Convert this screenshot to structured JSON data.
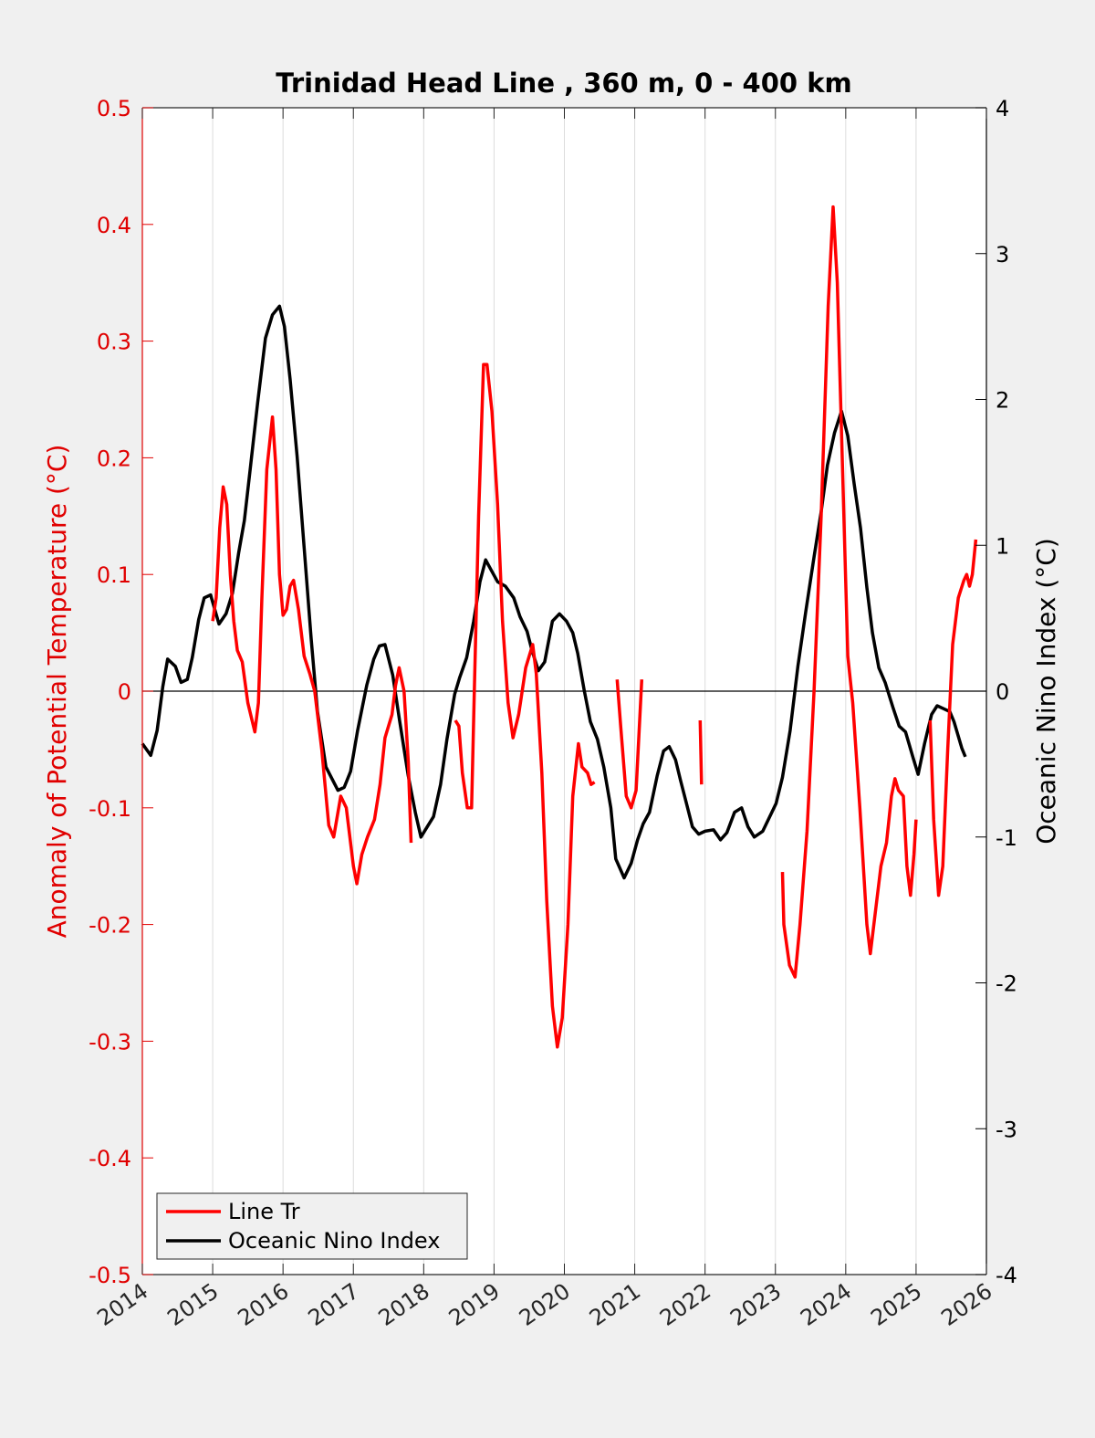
{
  "chart_data": {
    "type": "line",
    "title": "Trinidad Head Line , 360 m, 0 - 400 km",
    "xlabel": "",
    "ylabel": "Anomaly of Potential Temperature (°C)",
    "ylabel_right": "Oceanic Nino Index (°C)",
    "xlim": [
      2014,
      2026
    ],
    "ylim": [
      -0.5,
      0.5
    ],
    "ylim_right": [
      -4,
      4
    ],
    "grid": "x",
    "legend_position": "bottom-left",
    "colors": {
      "line_tr": "#ff0000",
      "oni": "#000000",
      "left_axis": "#e00000"
    },
    "x_ticks": [
      "2014",
      "2015",
      "2016",
      "2017",
      "2018",
      "2019",
      "2020",
      "2021",
      "2022",
      "2023",
      "2024",
      "2025",
      "2026"
    ],
    "y_ticks_left": [
      "0.5",
      "0.4",
      "0.3",
      "0.2",
      "0.1",
      "0",
      "-0.1",
      "-0.2",
      "-0.3",
      "-0.4",
      "-0.5"
    ],
    "y_ticks_right": [
      "4",
      "3",
      "2",
      "1",
      "0",
      "-1",
      "-2",
      "-3",
      "-4"
    ],
    "series": [
      {
        "name": "Line Tr",
        "axis": "left",
        "segments": [
          [
            [
              2015.0,
              0.06
            ],
            [
              2015.05,
              0.08
            ],
            [
              2015.1,
              0.14
            ],
            [
              2015.15,
              0.175
            ],
            [
              2015.2,
              0.16
            ],
            [
              2015.25,
              0.1
            ],
            [
              2015.3,
              0.06
            ],
            [
              2015.35,
              0.035
            ],
            [
              2015.42,
              0.025
            ],
            [
              2015.5,
              -0.01
            ],
            [
              2015.6,
              -0.035
            ],
            [
              2015.65,
              -0.01
            ],
            [
              2015.7,
              0.08
            ],
            [
              2015.77,
              0.19
            ],
            [
              2015.85,
              0.235
            ],
            [
              2015.9,
              0.19
            ],
            [
              2015.95,
              0.1
            ],
            [
              2016.0,
              0.065
            ],
            [
              2016.05,
              0.07
            ],
            [
              2016.1,
              0.09
            ],
            [
              2016.15,
              0.095
            ],
            [
              2016.22,
              0.07
            ],
            [
              2016.3,
              0.03
            ],
            [
              2016.38,
              0.015
            ],
            [
              2016.45,
              0.0
            ],
            [
              2016.55,
              -0.05
            ],
            [
              2016.65,
              -0.115
            ],
            [
              2016.72,
              -0.125
            ],
            [
              2016.82,
              -0.09
            ],
            [
              2016.9,
              -0.1
            ],
            [
              2017.0,
              -0.15
            ],
            [
              2017.05,
              -0.165
            ],
            [
              2017.12,
              -0.14
            ],
            [
              2017.2,
              -0.125
            ],
            [
              2017.3,
              -0.11
            ],
            [
              2017.38,
              -0.08
            ],
            [
              2017.45,
              -0.04
            ],
            [
              2017.55,
              -0.02
            ],
            [
              2017.6,
              0.005
            ],
            [
              2017.65,
              0.02
            ],
            [
              2017.72,
              0.0
            ],
            [
              2017.78,
              -0.06
            ],
            [
              2017.82,
              -0.13
            ]
          ],
          [
            [
              2018.45,
              -0.025
            ],
            [
              2018.5,
              -0.03
            ],
            [
              2018.55,
              -0.07
            ],
            [
              2018.62,
              -0.1
            ],
            [
              2018.68,
              -0.1
            ],
            [
              2018.72,
              0.0
            ],
            [
              2018.78,
              0.15
            ],
            [
              2018.85,
              0.28
            ],
            [
              2018.9,
              0.28
            ],
            [
              2018.97,
              0.24
            ],
            [
              2019.05,
              0.16
            ],
            [
              2019.12,
              0.06
            ],
            [
              2019.2,
              -0.01
            ],
            [
              2019.27,
              -0.04
            ],
            [
              2019.35,
              -0.02
            ],
            [
              2019.45,
              0.02
            ],
            [
              2019.55,
              0.04
            ],
            [
              2019.6,
              0.015
            ],
            [
              2019.68,
              -0.07
            ],
            [
              2019.75,
              -0.18
            ],
            [
              2019.83,
              -0.27
            ],
            [
              2019.9,
              -0.305
            ],
            [
              2019.97,
              -0.28
            ],
            [
              2020.05,
              -0.2
            ],
            [
              2020.12,
              -0.09
            ],
            [
              2020.2,
              -0.045
            ],
            [
              2020.25,
              -0.065
            ],
            [
              2020.33,
              -0.07
            ],
            [
              2020.38,
              -0.08
            ],
            [
              2020.43,
              -0.078
            ]
          ],
          [
            [
              2020.75,
              0.01
            ],
            [
              2020.8,
              -0.03
            ],
            [
              2020.88,
              -0.09
            ],
            [
              2020.95,
              -0.1
            ],
            [
              2021.02,
              -0.085
            ],
            [
              2021.1,
              0.01
            ]
          ],
          [
            [
              2021.93,
              -0.025
            ],
            [
              2021.95,
              -0.08
            ]
          ],
          [
            [
              2023.1,
              -0.155
            ],
            [
              2023.12,
              -0.2
            ],
            [
              2023.2,
              -0.235
            ],
            [
              2023.28,
              -0.245
            ],
            [
              2023.35,
              -0.2
            ],
            [
              2023.45,
              -0.12
            ],
            [
              2023.55,
              0.0
            ],
            [
              2023.65,
              0.15
            ],
            [
              2023.75,
              0.33
            ],
            [
              2023.82,
              0.415
            ],
            [
              2023.88,
              0.35
            ],
            [
              2023.95,
              0.2
            ],
            [
              2024.03,
              0.03
            ],
            [
              2024.1,
              -0.01
            ],
            [
              2024.2,
              -0.1
            ],
            [
              2024.3,
              -0.2
            ],
            [
              2024.35,
              -0.225
            ],
            [
              2024.42,
              -0.19
            ],
            [
              2024.5,
              -0.15
            ],
            [
              2024.58,
              -0.13
            ],
            [
              2024.65,
              -0.09
            ],
            [
              2024.7,
              -0.075
            ],
            [
              2024.75,
              -0.085
            ],
            [
              2024.82,
              -0.09
            ],
            [
              2024.87,
              -0.15
            ],
            [
              2024.92,
              -0.175
            ],
            [
              2024.97,
              -0.14
            ],
            [
              2025.0,
              -0.11
            ]
          ],
          [
            [
              2025.2,
              -0.025
            ],
            [
              2025.25,
              -0.11
            ],
            [
              2025.32,
              -0.175
            ],
            [
              2025.38,
              -0.15
            ],
            [
              2025.45,
              -0.05
            ],
            [
              2025.52,
              0.04
            ],
            [
              2025.6,
              0.08
            ],
            [
              2025.68,
              0.095
            ],
            [
              2025.72,
              0.1
            ],
            [
              2025.76,
              0.09
            ],
            [
              2025.8,
              0.1
            ],
            [
              2025.85,
              0.13
            ]
          ]
        ]
      },
      {
        "name": "Oceanic Nino Index",
        "axis": "right",
        "points": [
          [
            2014.0,
            -0.36
          ],
          [
            2014.12,
            -0.44
          ],
          [
            2014.21,
            -0.27
          ],
          [
            2014.29,
            0.03
          ],
          [
            2014.36,
            0.22
          ],
          [
            2014.47,
            0.17
          ],
          [
            2014.55,
            0.06
          ],
          [
            2014.64,
            0.08
          ],
          [
            2014.71,
            0.23
          ],
          [
            2014.8,
            0.49
          ],
          [
            2014.88,
            0.64
          ],
          [
            2014.97,
            0.66
          ],
          [
            2015.09,
            0.46
          ],
          [
            2015.19,
            0.53
          ],
          [
            2015.28,
            0.67
          ],
          [
            2015.37,
            0.95
          ],
          [
            2015.45,
            1.17
          ],
          [
            2015.54,
            1.55
          ],
          [
            2015.64,
            1.98
          ],
          [
            2015.75,
            2.42
          ],
          [
            2015.85,
            2.58
          ],
          [
            2015.95,
            2.64
          ],
          [
            2016.02,
            2.5
          ],
          [
            2016.1,
            2.14
          ],
          [
            2016.2,
            1.61
          ],
          [
            2016.31,
            0.92
          ],
          [
            2016.4,
            0.36
          ],
          [
            2016.49,
            -0.14
          ],
          [
            2016.61,
            -0.52
          ],
          [
            2016.78,
            -0.68
          ],
          [
            2016.87,
            -0.66
          ],
          [
            2016.96,
            -0.55
          ],
          [
            2017.06,
            -0.27
          ],
          [
            2017.19,
            0.04
          ],
          [
            2017.29,
            0.22
          ],
          [
            2017.37,
            0.31
          ],
          [
            2017.45,
            0.32
          ],
          [
            2017.56,
            0.11
          ],
          [
            2017.66,
            -0.21
          ],
          [
            2017.78,
            -0.58
          ],
          [
            2017.88,
            -0.83
          ],
          [
            2017.96,
            -1.0
          ],
          [
            2018.05,
            -0.93
          ],
          [
            2018.14,
            -0.86
          ],
          [
            2018.24,
            -0.64
          ],
          [
            2018.33,
            -0.33
          ],
          [
            2018.44,
            -0.02
          ],
          [
            2018.51,
            0.09
          ],
          [
            2018.61,
            0.23
          ],
          [
            2018.71,
            0.48
          ],
          [
            2018.8,
            0.75
          ],
          [
            2018.88,
            0.9
          ],
          [
            2018.96,
            0.83
          ],
          [
            2019.05,
            0.75
          ],
          [
            2019.16,
            0.72
          ],
          [
            2019.28,
            0.64
          ],
          [
            2019.37,
            0.51
          ],
          [
            2019.47,
            0.41
          ],
          [
            2019.54,
            0.28
          ],
          [
            2019.63,
            0.14
          ],
          [
            2019.72,
            0.2
          ],
          [
            2019.83,
            0.48
          ],
          [
            2019.93,
            0.53
          ],
          [
            2020.03,
            0.48
          ],
          [
            2020.12,
            0.4
          ],
          [
            2020.19,
            0.26
          ],
          [
            2020.28,
            0.01
          ],
          [
            2020.37,
            -0.21
          ],
          [
            2020.47,
            -0.33
          ],
          [
            2020.56,
            -0.52
          ],
          [
            2020.66,
            -0.8
          ],
          [
            2020.73,
            -1.15
          ],
          [
            2020.85,
            -1.28
          ],
          [
            2020.95,
            -1.18
          ],
          [
            2021.04,
            -1.02
          ],
          [
            2021.12,
            -0.91
          ],
          [
            2021.21,
            -0.83
          ],
          [
            2021.32,
            -0.58
          ],
          [
            2021.41,
            -0.41
          ],
          [
            2021.49,
            -0.38
          ],
          [
            2021.58,
            -0.47
          ],
          [
            2021.65,
            -0.61
          ],
          [
            2021.73,
            -0.76
          ],
          [
            2021.82,
            -0.93
          ],
          [
            2021.91,
            -0.98
          ],
          [
            2022.0,
            -0.96
          ],
          [
            2022.12,
            -0.95
          ],
          [
            2022.22,
            -1.02
          ],
          [
            2022.31,
            -0.97
          ],
          [
            2022.42,
            -0.83
          ],
          [
            2022.52,
            -0.8
          ],
          [
            2022.61,
            -0.93
          ],
          [
            2022.7,
            -1.0
          ],
          [
            2022.82,
            -0.96
          ],
          [
            2022.92,
            -0.86
          ],
          [
            2023.01,
            -0.77
          ],
          [
            2023.1,
            -0.59
          ],
          [
            2023.21,
            -0.27
          ],
          [
            2023.32,
            0.17
          ],
          [
            2023.43,
            0.54
          ],
          [
            2023.55,
            0.92
          ],
          [
            2023.65,
            1.23
          ],
          [
            2023.74,
            1.55
          ],
          [
            2023.84,
            1.77
          ],
          [
            2023.94,
            1.92
          ],
          [
            2024.03,
            1.75
          ],
          [
            2024.12,
            1.42
          ],
          [
            2024.21,
            1.12
          ],
          [
            2024.3,
            0.71
          ],
          [
            2024.38,
            0.4
          ],
          [
            2024.47,
            0.16
          ],
          [
            2024.56,
            0.06
          ],
          [
            2024.67,
            -0.11
          ],
          [
            2024.76,
            -0.24
          ],
          [
            2024.85,
            -0.28
          ],
          [
            2024.96,
            -0.46
          ],
          [
            2025.03,
            -0.57
          ],
          [
            2025.12,
            -0.36
          ],
          [
            2025.22,
            -0.16
          ],
          [
            2025.3,
            -0.1
          ],
          [
            2025.39,
            -0.12
          ],
          [
            2025.48,
            -0.14
          ],
          [
            2025.54,
            -0.21
          ],
          [
            2025.65,
            -0.39
          ],
          [
            2025.7,
            -0.45
          ]
        ]
      }
    ]
  }
}
